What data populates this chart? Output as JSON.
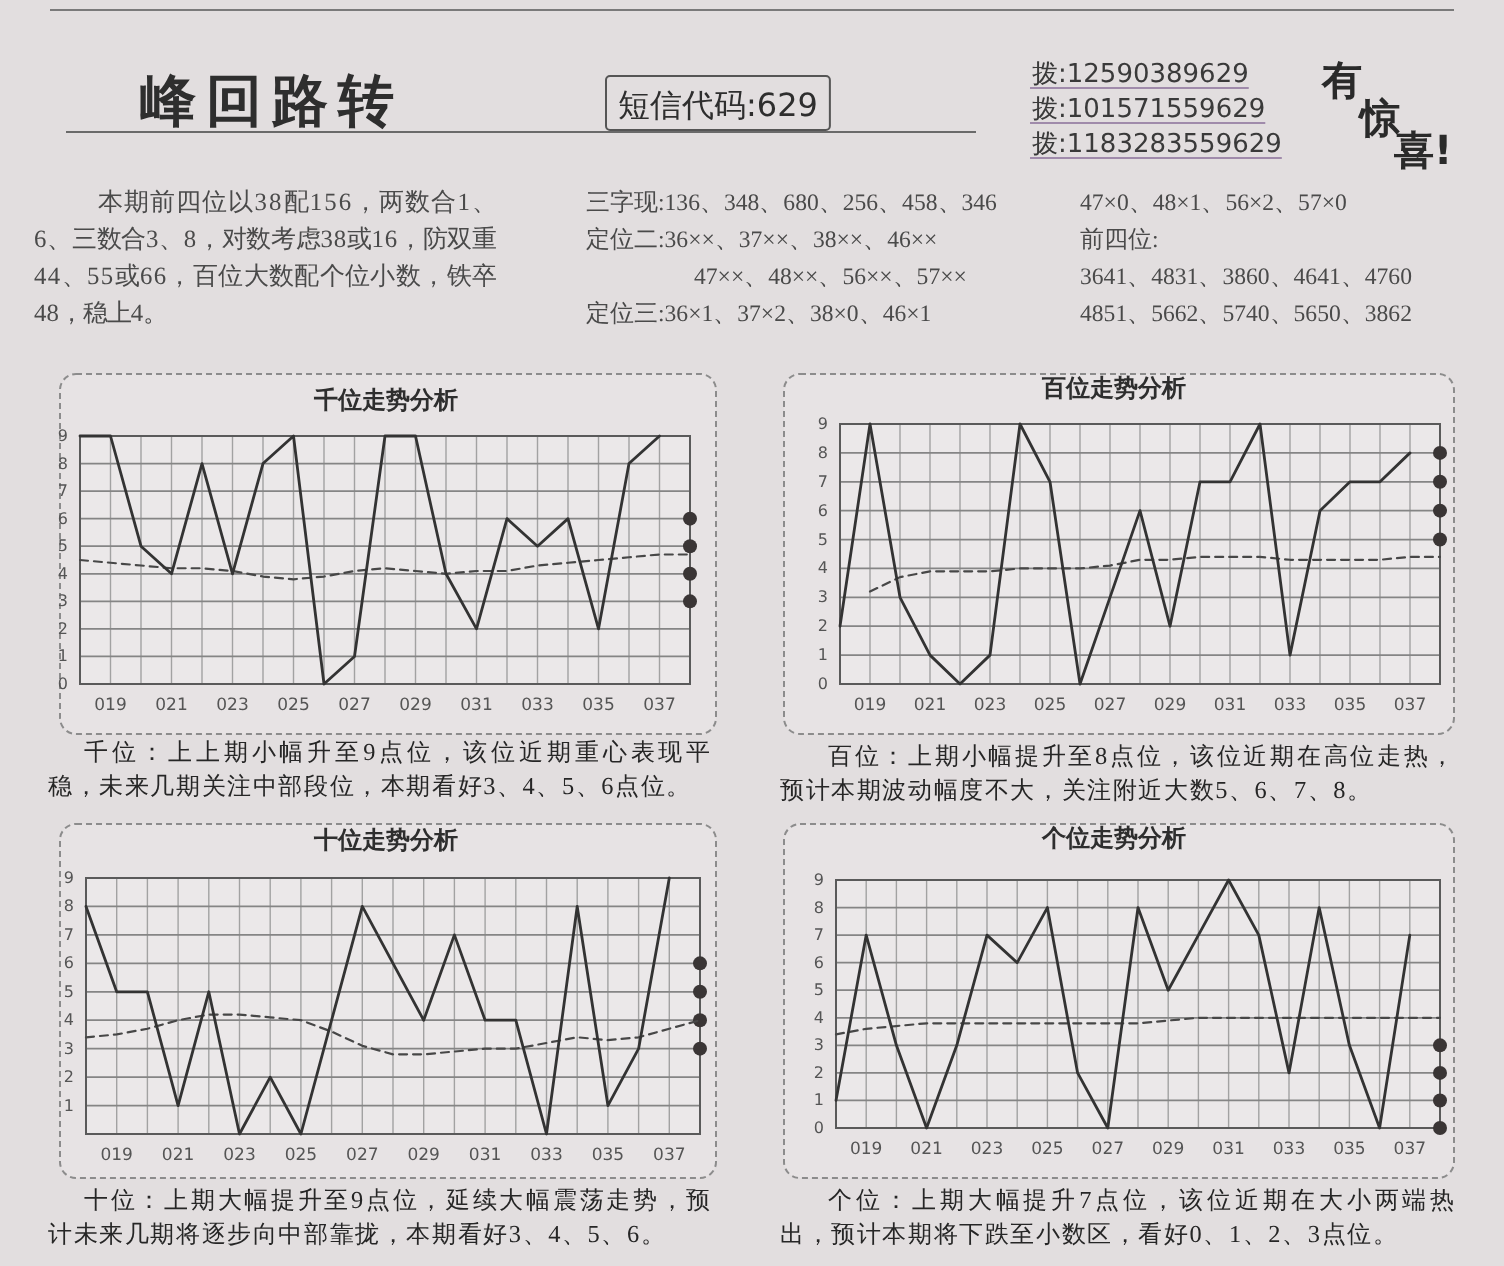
{
  "chart_data": [
    {
      "type": "other",
      "title": "峰回路转",
      "annotations": [
        "短信代码:629",
        "拨:12590389629",
        "拨:101571559629",
        "拨:1183283559629",
        "有惊喜!",
        "本期前四位以38配156，两数合1、6、三数合3、8，对数考虑38或16，防双重44、55或66，百位大数配个位小数，铁卒48，稳上4。",
        "三字现:136、348、680、256、458、346",
        "定位二:36××、37××、38××、46××",
        "47××、48××、56××、57××",
        "定位三:36×1、37×2、38×0、46×1",
        "47×0、48×1、56×2、57×0",
        "前四位:",
        "3641、4831、3860、4641、4760",
        "4851、5662、5740、5650、3862"
      ]
    },
    {
      "type": "line",
      "title": "千位走势分析",
      "x": [
        18,
        19,
        20,
        21,
        22,
        23,
        24,
        25,
        26,
        27,
        28,
        29,
        30,
        31,
        32,
        33,
        34,
        35,
        36,
        37,
        38
      ],
      "xlim": [
        18,
        38
      ],
      "xticks": [
        {
          "value": 18,
          "label": null
        },
        {
          "value": 19,
          "label": "019"
        },
        {
          "value": 20,
          "label": null
        },
        {
          "value": 21,
          "label": "021"
        },
        {
          "value": 22,
          "label": null
        },
        {
          "value": 23,
          "label": "023"
        },
        {
          "value": 24,
          "label": null
        },
        {
          "value": 25,
          "label": "025"
        },
        {
          "value": 26,
          "label": null
        },
        {
          "value": 27,
          "label": "027"
        },
        {
          "value": 28,
          "label": null
        },
        {
          "value": 29,
          "label": "029"
        },
        {
          "value": 30,
          "label": null
        },
        {
          "value": 31,
          "label": "031"
        },
        {
          "value": 32,
          "label": null
        },
        {
          "value": 33,
          "label": "033"
        },
        {
          "value": 34,
          "label": null
        },
        {
          "value": 35,
          "label": "035"
        },
        {
          "value": 36,
          "label": null
        },
        {
          "value": 37,
          "label": "037"
        },
        {
          "value": 38,
          "label": null
        }
      ],
      "ylim": [
        0,
        9
      ],
      "yticks": [
        0,
        1,
        2,
        3,
        4,
        5,
        6,
        7,
        8,
        9
      ],
      "grid": true,
      "series": [
        {
          "color": "#333333",
          "line_style": "solid",
          "values": [
            9,
            9,
            5,
            4,
            8,
            4,
            8,
            9,
            0,
            1,
            9,
            9,
            4,
            2,
            6,
            5,
            6,
            2,
            8,
            9,
            null
          ]
        },
        {
          "color": "#474747",
          "line_style": "dashed",
          "values": [
            4.5,
            4.4,
            4.3,
            4.2,
            4.2,
            4.1,
            3.9,
            3.8,
            3.9,
            4.1,
            4.2,
            4.1,
            4.0,
            4.1,
            4.1,
            4.3,
            4.4,
            4.5,
            4.6,
            4.7,
            4.7
          ]
        },
        {
          "type": "scatter",
          "color": "#3a3535",
          "marker": "circle",
          "values": [
            null,
            null,
            null,
            null,
            null,
            null,
            null,
            null,
            null,
            null,
            null,
            null,
            null,
            null,
            null,
            null,
            null,
            null,
            null,
            null,
            6
          ]
        },
        {
          "type": "scatter",
          "color": "#3a3535",
          "marker": "circle",
          "values": [
            null,
            null,
            null,
            null,
            null,
            null,
            null,
            null,
            null,
            null,
            null,
            null,
            null,
            null,
            null,
            null,
            null,
            null,
            null,
            null,
            5
          ]
        },
        {
          "type": "scatter",
          "color": "#3a3535",
          "marker": "circle",
          "values": [
            null,
            null,
            null,
            null,
            null,
            null,
            null,
            null,
            null,
            null,
            null,
            null,
            null,
            null,
            null,
            null,
            null,
            null,
            null,
            null,
            4
          ]
        },
        {
          "type": "scatter",
          "color": "#3a3535",
          "marker": "circle",
          "values": [
            null,
            null,
            null,
            null,
            null,
            null,
            null,
            null,
            null,
            null,
            null,
            null,
            null,
            null,
            null,
            null,
            null,
            null,
            null,
            null,
            3
          ]
        }
      ],
      "annotations": [
        "千位：上上期小幅升至9点位，该位近期重心表现平稳，未来几期关注中部段位，本期看好3、4、5、6点位。"
      ]
    },
    {
      "type": "line",
      "title": "百位走势分析",
      "x": [
        18,
        19,
        20,
        21,
        22,
        23,
        24,
        25,
        26,
        27,
        28,
        29,
        30,
        31,
        32,
        33,
        34,
        35,
        36,
        37,
        38
      ],
      "xlim": [
        18,
        38
      ],
      "xticks": [
        {
          "value": 18,
          "label": null
        },
        {
          "value": 19,
          "label": "019"
        },
        {
          "value": 20,
          "label": null
        },
        {
          "value": 21,
          "label": "021"
        },
        {
          "value": 22,
          "label": null
        },
        {
          "value": 23,
          "label": "023"
        },
        {
          "value": 24,
          "label": null
        },
        {
          "value": 25,
          "label": "025"
        },
        {
          "value": 26,
          "label": null
        },
        {
          "value": 27,
          "label": "027"
        },
        {
          "value": 28,
          "label": null
        },
        {
          "value": 29,
          "label": "029"
        },
        {
          "value": 30,
          "label": null
        },
        {
          "value": 31,
          "label": "031"
        },
        {
          "value": 32,
          "label": null
        },
        {
          "value": 33,
          "label": "033"
        },
        {
          "value": 34,
          "label": null
        },
        {
          "value": 35,
          "label": "035"
        },
        {
          "value": 36,
          "label": null
        },
        {
          "value": 37,
          "label": "037"
        },
        {
          "value": 38,
          "label": null
        }
      ],
      "ylim": [
        0,
        9
      ],
      "yticks": [
        0,
        1,
        2,
        3,
        4,
        5,
        6,
        7,
        8,
        9
      ],
      "grid": true,
      "series": [
        {
          "color": "#333333",
          "line_style": "solid",
          "values": [
            2,
            9,
            3,
            1,
            0,
            1,
            9,
            7,
            0,
            3,
            6,
            2,
            7,
            7,
            9,
            1,
            6,
            7,
            7,
            8,
            null
          ]
        },
        {
          "color": "#474747",
          "line_style": "dashed",
          "values": [
            null,
            3.2,
            3.7,
            3.9,
            3.9,
            3.9,
            4.0,
            4.0,
            4.0,
            4.1,
            4.3,
            4.3,
            4.4,
            4.4,
            4.4,
            4.3,
            4.3,
            4.3,
            4.3,
            4.4,
            4.4
          ]
        },
        {
          "type": "scatter",
          "color": "#3a3535",
          "marker": "circle",
          "values": [
            null,
            null,
            null,
            null,
            null,
            null,
            null,
            null,
            null,
            null,
            null,
            null,
            null,
            null,
            null,
            null,
            null,
            null,
            null,
            null,
            8
          ]
        },
        {
          "type": "scatter",
          "color": "#3a3535",
          "marker": "circle",
          "values": [
            null,
            null,
            null,
            null,
            null,
            null,
            null,
            null,
            null,
            null,
            null,
            null,
            null,
            null,
            null,
            null,
            null,
            null,
            null,
            null,
            7
          ]
        },
        {
          "type": "scatter",
          "color": "#3a3535",
          "marker": "circle",
          "values": [
            null,
            null,
            null,
            null,
            null,
            null,
            null,
            null,
            null,
            null,
            null,
            null,
            null,
            null,
            null,
            null,
            null,
            null,
            null,
            null,
            6
          ]
        },
        {
          "type": "scatter",
          "color": "#3a3535",
          "marker": "circle",
          "values": [
            null,
            null,
            null,
            null,
            null,
            null,
            null,
            null,
            null,
            null,
            null,
            null,
            null,
            null,
            null,
            null,
            null,
            null,
            null,
            null,
            5
          ]
        }
      ],
      "annotations": [
        "百位：上期小幅提升至8点位，该位近期在高位走热，预计本期波动幅度不大，关注附近大数5、6、7、8。"
      ]
    },
    {
      "type": "line",
      "title": "十位走势分析",
      "x": [
        18,
        19,
        20,
        21,
        22,
        23,
        24,
        25,
        26,
        27,
        28,
        29,
        30,
        31,
        32,
        33,
        34,
        35,
        36,
        37,
        38
      ],
      "xlim": [
        18,
        38
      ],
      "xticks": [
        {
          "value": 18,
          "label": null
        },
        {
          "value": 19,
          "label": "019"
        },
        {
          "value": 20,
          "label": null
        },
        {
          "value": 21,
          "label": "021"
        },
        {
          "value": 22,
          "label": null
        },
        {
          "value": 23,
          "label": "023"
        },
        {
          "value": 24,
          "label": null
        },
        {
          "value": 25,
          "label": "025"
        },
        {
          "value": 26,
          "label": null
        },
        {
          "value": 27,
          "label": "027"
        },
        {
          "value": 28,
          "label": null
        },
        {
          "value": 29,
          "label": "029"
        },
        {
          "value": 30,
          "label": null
        },
        {
          "value": 31,
          "label": "031"
        },
        {
          "value": 32,
          "label": null
        },
        {
          "value": 33,
          "label": "033"
        },
        {
          "value": 34,
          "label": null
        },
        {
          "value": 35,
          "label": "035"
        },
        {
          "value": 36,
          "label": null
        },
        {
          "value": 37,
          "label": "037"
        },
        {
          "value": 38,
          "label": null
        }
      ],
      "ylim": [
        0,
        9
      ],
      "yticks": [
        {
          "value": 0,
          "label": null
        },
        1,
        2,
        3,
        4,
        5,
        6,
        7,
        8,
        9
      ],
      "grid": true,
      "series": [
        {
          "color": "#333333",
          "line_style": "solid",
          "values": [
            8,
            5,
            5,
            1,
            5,
            0,
            2,
            0,
            4,
            8,
            6,
            4,
            7,
            4,
            4,
            0,
            8,
            1,
            3,
            9,
            null
          ]
        },
        {
          "color": "#474747",
          "line_style": "dashed",
          "values": [
            3.4,
            3.5,
            3.7,
            4.0,
            4.2,
            4.2,
            4.1,
            4.0,
            3.6,
            3.1,
            2.8,
            2.8,
            2.9,
            3.0,
            3.0,
            3.2,
            3.4,
            3.3,
            3.4,
            3.7,
            4.0
          ]
        },
        {
          "type": "scatter",
          "color": "#3a3535",
          "marker": "circle",
          "values": [
            null,
            null,
            null,
            null,
            null,
            null,
            null,
            null,
            null,
            null,
            null,
            null,
            null,
            null,
            null,
            null,
            null,
            null,
            null,
            null,
            6
          ]
        },
        {
          "type": "scatter",
          "color": "#3a3535",
          "marker": "circle",
          "values": [
            null,
            null,
            null,
            null,
            null,
            null,
            null,
            null,
            null,
            null,
            null,
            null,
            null,
            null,
            null,
            null,
            null,
            null,
            null,
            null,
            5
          ]
        },
        {
          "type": "scatter",
          "color": "#3a3535",
          "marker": "circle",
          "values": [
            null,
            null,
            null,
            null,
            null,
            null,
            null,
            null,
            null,
            null,
            null,
            null,
            null,
            null,
            null,
            null,
            null,
            null,
            null,
            null,
            4
          ]
        },
        {
          "type": "scatter",
          "color": "#3a3535",
          "marker": "circle",
          "values": [
            null,
            null,
            null,
            null,
            null,
            null,
            null,
            null,
            null,
            null,
            null,
            null,
            null,
            null,
            null,
            null,
            null,
            null,
            null,
            null,
            3
          ]
        }
      ],
      "annotations": [
        "十位：上期大幅提升至9点位，延续大幅震荡走势，预计未来几期将逐步向中部靠拢，本期看好3、4、5、6。"
      ]
    },
    {
      "type": "line",
      "title": "个位走势分析",
      "x": [
        18,
        19,
        20,
        21,
        22,
        23,
        24,
        25,
        26,
        27,
        28,
        29,
        30,
        31,
        32,
        33,
        34,
        35,
        36,
        37,
        38
      ],
      "xlim": [
        18,
        38
      ],
      "xticks": [
        {
          "value": 18,
          "label": null
        },
        {
          "value": 19,
          "label": "019"
        },
        {
          "value": 20,
          "label": null
        },
        {
          "value": 21,
          "label": "021"
        },
        {
          "value": 22,
          "label": null
        },
        {
          "value": 23,
          "label": "023"
        },
        {
          "value": 24,
          "label": null
        },
        {
          "value": 25,
          "label": "025"
        },
        {
          "value": 26,
          "label": null
        },
        {
          "value": 27,
          "label": "027"
        },
        {
          "value": 28,
          "label": null
        },
        {
          "value": 29,
          "label": "029"
        },
        {
          "value": 30,
          "label": null
        },
        {
          "value": 31,
          "label": "031"
        },
        {
          "value": 32,
          "label": null
        },
        {
          "value": 33,
          "label": "033"
        },
        {
          "value": 34,
          "label": null
        },
        {
          "value": 35,
          "label": "035"
        },
        {
          "value": 36,
          "label": null
        },
        {
          "value": 37,
          "label": "037"
        },
        {
          "value": 38,
          "label": null
        }
      ],
      "ylim": [
        0,
        9
      ],
      "yticks": [
        0,
        1,
        2,
        3,
        4,
        5,
        6,
        7,
        8,
        9
      ],
      "grid": true,
      "series": [
        {
          "color": "#333333",
          "line_style": "solid",
          "values": [
            1,
            7,
            3,
            0,
            3,
            7,
            6,
            8,
            2,
            0,
            8,
            5,
            7,
            9,
            7,
            2,
            8,
            3,
            0,
            7,
            null
          ]
        },
        {
          "color": "#474747",
          "line_style": "dashed",
          "values": [
            3.4,
            3.6,
            3.7,
            3.8,
            3.8,
            3.8,
            3.8,
            3.8,
            3.8,
            3.8,
            3.8,
            3.9,
            4.0,
            4.0,
            4.0,
            4.0,
            4.0,
            4.0,
            4.0,
            4.0,
            4.0
          ]
        },
        {
          "type": "scatter",
          "color": "#3a3535",
          "marker": "circle",
          "values": [
            null,
            null,
            null,
            null,
            null,
            null,
            null,
            null,
            null,
            null,
            null,
            null,
            null,
            null,
            null,
            null,
            null,
            null,
            null,
            null,
            3
          ]
        },
        {
          "type": "scatter",
          "color": "#3a3535",
          "marker": "circle",
          "values": [
            null,
            null,
            null,
            null,
            null,
            null,
            null,
            null,
            null,
            null,
            null,
            null,
            null,
            null,
            null,
            null,
            null,
            null,
            null,
            null,
            2
          ]
        },
        {
          "type": "scatter",
          "color": "#3a3535",
          "marker": "circle",
          "values": [
            null,
            null,
            null,
            null,
            null,
            null,
            null,
            null,
            null,
            null,
            null,
            null,
            null,
            null,
            null,
            null,
            null,
            null,
            null,
            null,
            1
          ]
        },
        {
          "type": "scatter",
          "color": "#3a3535",
          "marker": "circle",
          "values": [
            null,
            null,
            null,
            null,
            null,
            null,
            null,
            null,
            null,
            null,
            null,
            null,
            null,
            null,
            null,
            null,
            null,
            null,
            null,
            null,
            0
          ]
        }
      ],
      "annotations": [
        "个位：上期大幅提升7点位，该位近期在大小两端热出，预计本期将下跌至小数区，看好0、1、2、3点位。"
      ]
    }
  ]
}
